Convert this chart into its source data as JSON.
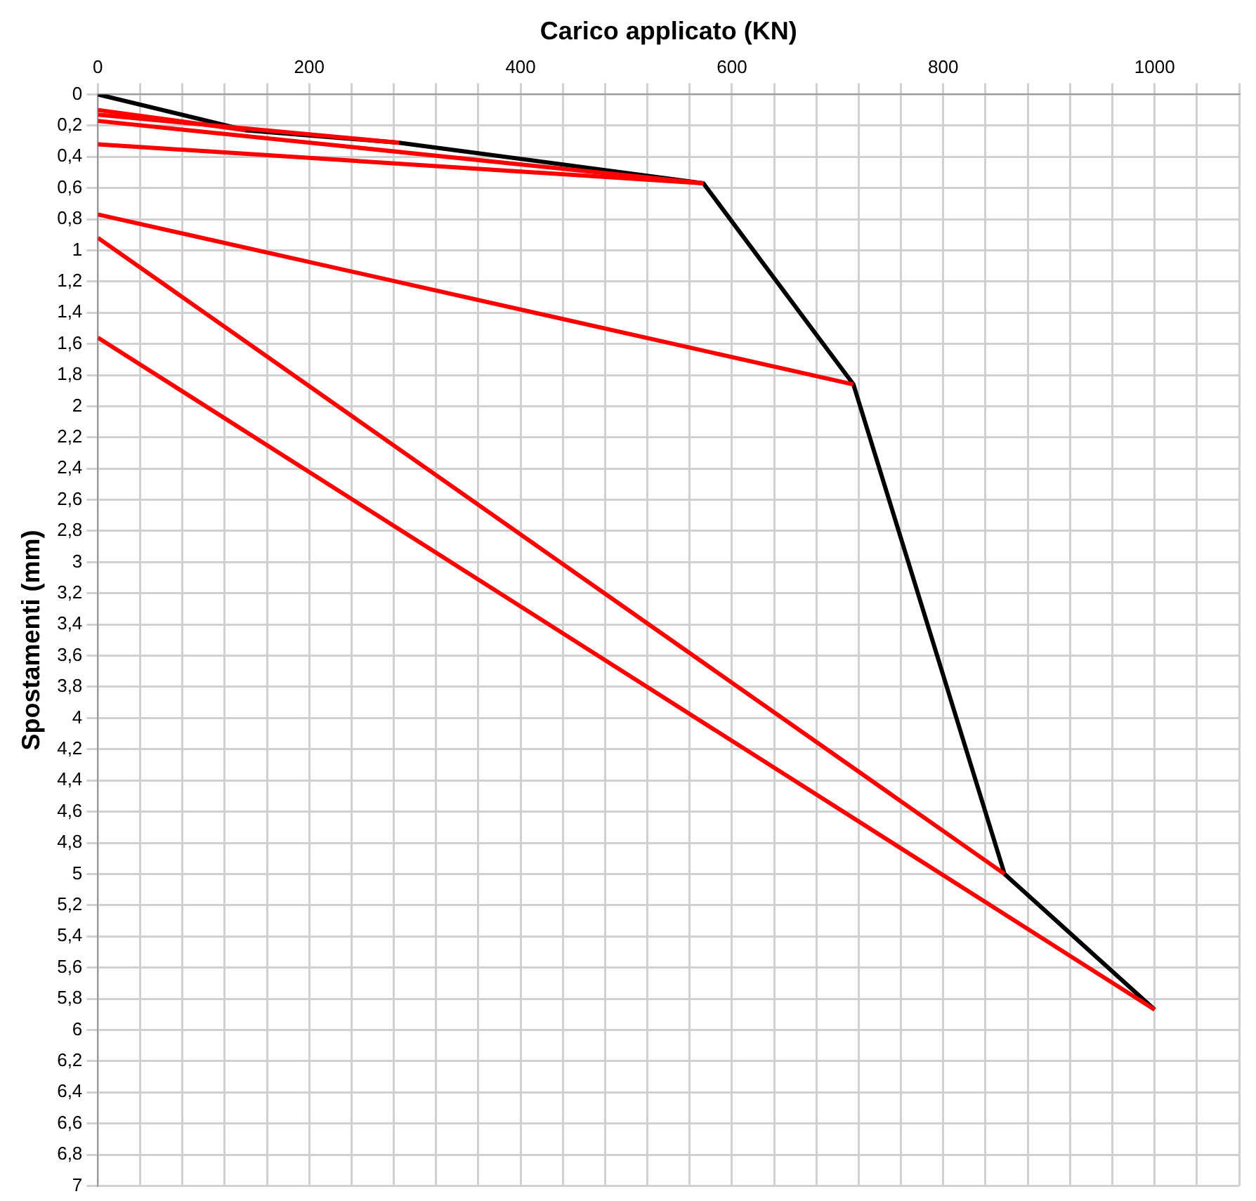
{
  "chart_data": {
    "type": "line",
    "xlabel": "Carico applicato (KN)",
    "ylabel": "Spostamenti (mm)",
    "marker": "none",
    "grid": true,
    "legend": false,
    "xlim": [
      0,
      1080
    ],
    "ylim": [
      7,
      0
    ],
    "xticks": [
      0,
      {
        "value": 40,
        "label": null
      },
      {
        "value": 80,
        "label": null
      },
      {
        "value": 120,
        "label": null
      },
      {
        "value": 160,
        "label": null
      },
      200,
      {
        "value": 240,
        "label": null
      },
      {
        "value": 280,
        "label": null
      },
      {
        "value": 320,
        "label": null
      },
      {
        "value": 360,
        "label": null
      },
      400,
      {
        "value": 440,
        "label": null
      },
      {
        "value": 480,
        "label": null
      },
      {
        "value": 520,
        "label": null
      },
      {
        "value": 560,
        "label": null
      },
      600,
      {
        "value": 640,
        "label": null
      },
      {
        "value": 680,
        "label": null
      },
      {
        "value": 720,
        "label": null
      },
      {
        "value": 760,
        "label": null
      },
      800,
      {
        "value": 840,
        "label": null
      },
      {
        "value": 880,
        "label": null
      },
      {
        "value": 920,
        "label": null
      },
      {
        "value": 960,
        "label": null
      },
      1000,
      {
        "value": 1040,
        "label": null
      },
      {
        "value": 1080,
        "label": null
      }
    ],
    "yticks": [
      0,
      {
        "value": 0.2,
        "label": "0,2"
      },
      {
        "value": 0.4,
        "label": "0,4"
      },
      {
        "value": 0.6,
        "label": "0,6"
      },
      {
        "value": 0.8,
        "label": "0,8"
      },
      1,
      {
        "value": 1.2,
        "label": "1,2"
      },
      {
        "value": 1.4,
        "label": "1,4"
      },
      {
        "value": 1.6,
        "label": "1,6"
      },
      {
        "value": 1.8,
        "label": "1,8"
      },
      2,
      {
        "value": 2.2,
        "label": "2,2"
      },
      {
        "value": 2.4,
        "label": "2,4"
      },
      {
        "value": 2.6,
        "label": "2,6"
      },
      {
        "value": 2.8,
        "label": "2,8"
      },
      3,
      {
        "value": 3.2,
        "label": "3,2"
      },
      {
        "value": 3.4,
        "label": "3,4"
      },
      {
        "value": 3.6,
        "label": "3,6"
      },
      {
        "value": 3.8,
        "label": "3,8"
      },
      4,
      {
        "value": 4.2,
        "label": "4,2"
      },
      {
        "value": 4.4,
        "label": "4,4"
      },
      {
        "value": 4.6,
        "label": "4,6"
      },
      {
        "value": 4.8,
        "label": "4,8"
      },
      5,
      {
        "value": 5.2,
        "label": "5,2"
      },
      {
        "value": 5.4,
        "label": "5,4"
      },
      {
        "value": 5.6,
        "label": "5,6"
      },
      {
        "value": 5.8,
        "label": "5,8"
      },
      6,
      {
        "value": 6.2,
        "label": "6,2"
      },
      {
        "value": 6.4,
        "label": "6,4"
      },
      {
        "value": 6.6,
        "label": "6,6"
      },
      {
        "value": 6.8,
        "label": "6,8"
      },
      7
    ],
    "series": [
      {
        "color": "#ff0000",
        "x": [
          140,
          0
        ],
        "values": [
          0.23,
          0.1
        ]
      },
      {
        "color": "#ff0000",
        "x": [
          285,
          0
        ],
        "values": [
          0.31,
          0.13
        ]
      },
      {
        "color": "#ff0000",
        "x": [
          573,
          0
        ],
        "values": [
          0.57,
          0.17
        ]
      },
      {
        "color": "#ff0000",
        "x": [
          573,
          0
        ],
        "values": [
          0.57,
          0.32
        ]
      },
      {
        "color": "#ff0000",
        "x": [
          715,
          0
        ],
        "values": [
          1.86,
          0.77
        ]
      },
      {
        "color": "#ff0000",
        "x": [
          858,
          0
        ],
        "values": [
          5.0,
          0.92
        ]
      },
      {
        "color": "#ff0000",
        "x": [
          1000,
          0
        ],
        "values": [
          5.87,
          1.56
        ]
      },
      {
        "color": "#000000",
        "x": [
          0,
          140,
          285,
          573,
          715,
          858,
          1000
        ],
        "values": [
          0,
          0.23,
          0.31,
          0.57,
          1.86,
          5.0,
          5.87
        ]
      }
    ]
  }
}
